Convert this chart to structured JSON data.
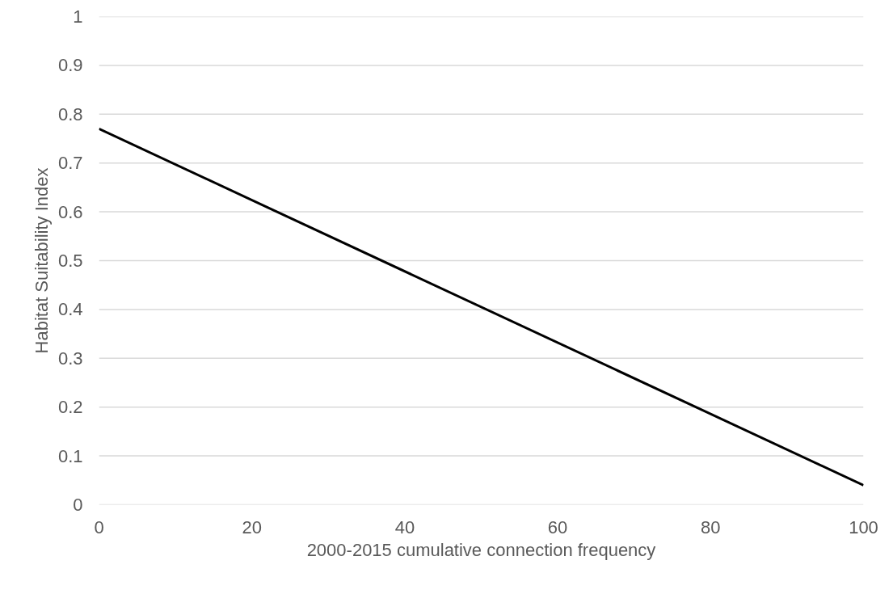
{
  "chart_data": {
    "type": "line",
    "xlabel": "2000-2015 cumulative connection frequency",
    "ylabel": "Habitat Suitability Index",
    "x": [
      0,
      100
    ],
    "series": [
      {
        "color": "#000000",
        "values": [
          0.77,
          0.04
        ]
      }
    ],
    "xlim": [
      0,
      100
    ],
    "xticks": [
      0,
      20,
      40,
      60,
      80,
      100
    ],
    "ylim": [
      0,
      1
    ],
    "yticks": [
      0,
      0.1,
      0.2,
      0.3,
      0.4,
      0.5,
      0.6,
      0.7,
      0.8,
      0.9,
      1
    ],
    "grid": "y",
    "marker": "none",
    "line_style": "solid"
  }
}
